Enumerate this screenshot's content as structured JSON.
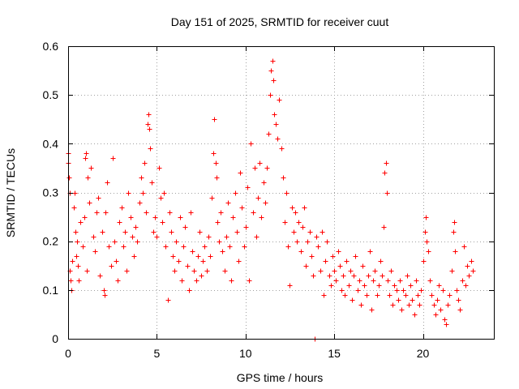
{
  "chart_data": {
    "type": "scatter",
    "title": "Day 151 of 2025, SRMTID for receiver cuut",
    "xlabel": "GPS time / hours",
    "ylabel": "SRMTID / TECUs",
    "xlim": [
      0,
      24
    ],
    "ylim": [
      0,
      0.6
    ],
    "x_ticks": [
      0,
      5,
      10,
      15,
      20
    ],
    "x_tick_labels": [
      "0",
      "5",
      "10",
      "15",
      "20"
    ],
    "y_ticks": [
      0,
      0.1,
      0.2,
      0.3,
      0.4,
      0.5,
      0.6
    ],
    "y_tick_labels": [
      "0",
      "0.1",
      "0.2",
      "0.3",
      "0.4",
      "0.5",
      "0.6"
    ],
    "grid": true,
    "marker": "plus",
    "color": "#ff0000",
    "series": [
      {
        "name": "SRMTID",
        "points": [
          [
            0.0,
            0.38
          ],
          [
            0.02,
            0.36
          ],
          [
            0.05,
            0.33
          ],
          [
            0.08,
            0.3
          ],
          [
            0.1,
            0.14
          ],
          [
            0.15,
            0.12
          ],
          [
            0.2,
            0.1
          ],
          [
            0.25,
            0.16
          ],
          [
            0.3,
            0.27
          ],
          [
            0.35,
            0.3
          ],
          [
            0.4,
            0.22
          ],
          [
            0.45,
            0.17
          ],
          [
            0.5,
            0.2
          ],
          [
            0.55,
            0.15
          ],
          [
            0.6,
            0.12
          ],
          [
            0.7,
            0.24
          ],
          [
            0.8,
            0.19
          ],
          [
            0.9,
            0.25
          ],
          [
            0.95,
            0.37
          ],
          [
            1.0,
            0.38
          ],
          [
            1.05,
            0.14
          ],
          [
            1.1,
            0.33
          ],
          [
            1.2,
            0.28
          ],
          [
            1.3,
            0.35
          ],
          [
            1.4,
            0.21
          ],
          [
            1.5,
            0.18
          ],
          [
            1.6,
            0.26
          ],
          [
            1.7,
            0.29
          ],
          [
            1.8,
            0.13
          ],
          [
            1.9,
            0.22
          ],
          [
            2.0,
            0.1
          ],
          [
            2.05,
            0.09
          ],
          [
            2.1,
            0.26
          ],
          [
            2.2,
            0.32
          ],
          [
            2.3,
            0.19
          ],
          [
            2.4,
            0.15
          ],
          [
            2.5,
            0.37
          ],
          [
            2.6,
            0.2
          ],
          [
            2.7,
            0.16
          ],
          [
            2.8,
            0.12
          ],
          [
            2.9,
            0.24
          ],
          [
            3.0,
            0.27
          ],
          [
            3.1,
            0.19
          ],
          [
            3.2,
            0.22
          ],
          [
            3.3,
            0.14
          ],
          [
            3.4,
            0.3
          ],
          [
            3.5,
            0.25
          ],
          [
            3.6,
            0.21
          ],
          [
            3.7,
            0.17
          ],
          [
            3.8,
            0.23
          ],
          [
            3.9,
            0.2
          ],
          [
            4.0,
            0.28
          ],
          [
            4.1,
            0.33
          ],
          [
            4.2,
            0.3
          ],
          [
            4.3,
            0.36
          ],
          [
            4.4,
            0.26
          ],
          [
            4.5,
            0.44
          ],
          [
            4.52,
            0.46
          ],
          [
            4.55,
            0.43
          ],
          [
            4.6,
            0.39
          ],
          [
            4.7,
            0.32
          ],
          [
            4.8,
            0.22
          ],
          [
            4.9,
            0.25
          ],
          [
            5.0,
            0.21
          ],
          [
            5.1,
            0.35
          ],
          [
            5.2,
            0.29
          ],
          [
            5.3,
            0.24
          ],
          [
            5.4,
            0.3
          ],
          [
            5.5,
            0.19
          ],
          [
            5.6,
            0.08
          ],
          [
            5.7,
            0.26
          ],
          [
            5.8,
            0.22
          ],
          [
            5.9,
            0.17
          ],
          [
            6.0,
            0.14
          ],
          [
            6.1,
            0.2
          ],
          [
            6.2,
            0.16
          ],
          [
            6.3,
            0.25
          ],
          [
            6.4,
            0.12
          ],
          [
            6.5,
            0.19
          ],
          [
            6.6,
            0.23
          ],
          [
            6.7,
            0.15
          ],
          [
            6.8,
            0.1
          ],
          [
            6.9,
            0.26
          ],
          [
            7.0,
            0.18
          ],
          [
            7.1,
            0.14
          ],
          [
            7.2,
            0.12
          ],
          [
            7.3,
            0.17
          ],
          [
            7.4,
            0.22
          ],
          [
            7.5,
            0.13
          ],
          [
            7.6,
            0.16
          ],
          [
            7.7,
            0.19
          ],
          [
            7.8,
            0.14
          ],
          [
            7.9,
            0.21
          ],
          [
            8.0,
            0.17
          ],
          [
            8.1,
            0.29
          ],
          [
            8.2,
            0.38
          ],
          [
            8.25,
            0.45
          ],
          [
            8.3,
            0.36
          ],
          [
            8.35,
            0.33
          ],
          [
            8.4,
            0.24
          ],
          [
            8.5,
            0.2
          ],
          [
            8.6,
            0.26
          ],
          [
            8.7,
            0.18
          ],
          [
            8.8,
            0.14
          ],
          [
            8.9,
            0.21
          ],
          [
            9.0,
            0.28
          ],
          [
            9.1,
            0.19
          ],
          [
            9.2,
            0.12
          ],
          [
            9.3,
            0.25
          ],
          [
            9.4,
            0.3
          ],
          [
            9.5,
            0.22
          ],
          [
            9.6,
            0.16
          ],
          [
            9.7,
            0.34
          ],
          [
            9.8,
            0.27
          ],
          [
            9.9,
            0.19
          ],
          [
            10.0,
            0.23
          ],
          [
            10.1,
            0.31
          ],
          [
            10.2,
            0.12
          ],
          [
            10.3,
            0.4
          ],
          [
            10.4,
            0.26
          ],
          [
            10.5,
            0.35
          ],
          [
            10.6,
            0.21
          ],
          [
            10.7,
            0.29
          ],
          [
            10.8,
            0.36
          ],
          [
            10.9,
            0.25
          ],
          [
            11.0,
            0.32
          ],
          [
            11.1,
            0.28
          ],
          [
            11.2,
            0.35
          ],
          [
            11.3,
            0.42
          ],
          [
            11.4,
            0.5
          ],
          [
            11.45,
            0.55
          ],
          [
            11.5,
            0.57
          ],
          [
            11.55,
            0.53
          ],
          [
            11.6,
            0.46
          ],
          [
            11.7,
            0.44
          ],
          [
            11.8,
            0.41
          ],
          [
            11.9,
            0.49
          ],
          [
            12.0,
            0.39
          ],
          [
            12.1,
            0.33
          ],
          [
            12.2,
            0.24
          ],
          [
            12.3,
            0.3
          ],
          [
            12.4,
            0.19
          ],
          [
            12.5,
            0.11
          ],
          [
            12.6,
            0.27
          ],
          [
            12.7,
            0.22
          ],
          [
            12.8,
            0.26
          ],
          [
            12.9,
            0.2
          ],
          [
            13.0,
            0.24
          ],
          [
            13.1,
            0.18
          ],
          [
            13.2,
            0.23
          ],
          [
            13.3,
            0.27
          ],
          [
            13.4,
            0.15
          ],
          [
            13.5,
            0.2
          ],
          [
            13.6,
            0.22
          ],
          [
            13.7,
            0.17
          ],
          [
            13.8,
            0.13
          ],
          [
            13.9,
            0.0
          ],
          [
            14.0,
            0.21
          ],
          [
            14.1,
            0.19
          ],
          [
            14.2,
            0.14
          ],
          [
            14.3,
            0.22
          ],
          [
            14.4,
            0.09
          ],
          [
            14.5,
            0.16
          ],
          [
            14.6,
            0.2
          ],
          [
            14.7,
            0.13
          ],
          [
            14.8,
            0.11
          ],
          [
            14.9,
            0.17
          ],
          [
            15.0,
            0.14
          ],
          [
            15.1,
            0.12
          ],
          [
            15.2,
            0.18
          ],
          [
            15.3,
            0.15
          ],
          [
            15.4,
            0.1
          ],
          [
            15.5,
            0.13
          ],
          [
            15.6,
            0.09
          ],
          [
            15.7,
            0.16
          ],
          [
            15.8,
            0.11
          ],
          [
            15.9,
            0.14
          ],
          [
            16.0,
            0.08
          ],
          [
            16.1,
            0.13
          ],
          [
            16.2,
            0.17
          ],
          [
            16.3,
            0.1
          ],
          [
            16.4,
            0.12
          ],
          [
            16.5,
            0.07
          ],
          [
            16.6,
            0.15
          ],
          [
            16.7,
            0.11
          ],
          [
            16.8,
            0.09
          ],
          [
            16.9,
            0.13
          ],
          [
            17.0,
            0.18
          ],
          [
            17.1,
            0.06
          ],
          [
            17.2,
            0.12
          ],
          [
            17.3,
            0.14
          ],
          [
            17.4,
            0.09
          ],
          [
            17.5,
            0.11
          ],
          [
            17.6,
            0.16
          ],
          [
            17.7,
            0.13
          ],
          [
            17.8,
            0.23
          ],
          [
            17.85,
            0.34
          ],
          [
            17.9,
            0.36
          ],
          [
            17.95,
            0.3
          ],
          [
            18.0,
            0.12
          ],
          [
            18.1,
            0.09
          ],
          [
            18.2,
            0.14
          ],
          [
            18.3,
            0.07
          ],
          [
            18.4,
            0.11
          ],
          [
            18.5,
            0.1
          ],
          [
            18.6,
            0.08
          ],
          [
            18.7,
            0.12
          ],
          [
            18.8,
            0.06
          ],
          [
            18.9,
            0.1
          ],
          [
            19.0,
            0.09
          ],
          [
            19.1,
            0.13
          ],
          [
            19.2,
            0.07
          ],
          [
            19.3,
            0.11
          ],
          [
            19.4,
            0.08
          ],
          [
            19.5,
            0.05
          ],
          [
            19.6,
            0.12
          ],
          [
            19.7,
            0.09
          ],
          [
            19.8,
            0.07
          ],
          [
            19.9,
            0.1
          ],
          [
            20.0,
            0.16
          ],
          [
            20.1,
            0.22
          ],
          [
            20.15,
            0.25
          ],
          [
            20.2,
            0.2
          ],
          [
            20.3,
            0.18
          ],
          [
            20.4,
            0.12
          ],
          [
            20.5,
            0.09
          ],
          [
            20.6,
            0.07
          ],
          [
            20.7,
            0.05
          ],
          [
            20.8,
            0.08
          ],
          [
            20.9,
            0.11
          ],
          [
            21.0,
            0.06
          ],
          [
            21.1,
            0.1
          ],
          [
            21.2,
            0.04
          ],
          [
            21.3,
            0.03
          ],
          [
            21.4,
            0.07
          ],
          [
            21.5,
            0.09
          ],
          [
            21.6,
            0.14
          ],
          [
            21.7,
            0.22
          ],
          [
            21.75,
            0.24
          ],
          [
            21.8,
            0.18
          ],
          [
            21.9,
            0.1
          ],
          [
            22.0,
            0.08
          ],
          [
            22.1,
            0.06
          ],
          [
            22.2,
            0.12
          ],
          [
            22.3,
            0.19
          ],
          [
            22.4,
            0.11
          ],
          [
            22.5,
            0.15
          ],
          [
            22.6,
            0.13
          ],
          [
            22.7,
            0.16
          ],
          [
            22.8,
            0.14
          ]
        ]
      }
    ]
  }
}
